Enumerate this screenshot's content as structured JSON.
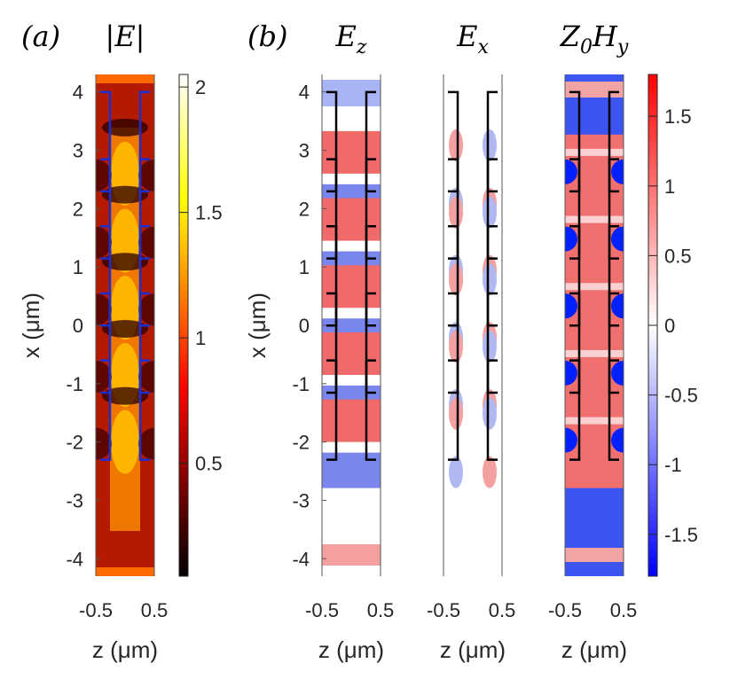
{
  "figure": {
    "label_a": "(a)",
    "label_b": "(b)"
  },
  "chart_data": [
    {
      "type": "heatmap",
      "id": "panel-a",
      "title": "|E|",
      "colormap": "hot",
      "xlabel": "z (μm)",
      "ylabel": "x (μm)",
      "xlim": [
        -0.5,
        0.5
      ],
      "ylim": [
        -4.3,
        4.3
      ],
      "xticks": [
        -0.5,
        0.5
      ],
      "xtick_labels": [
        "-0.5",
        "0.5"
      ],
      "yticks": [
        4,
        3,
        2,
        1,
        0,
        -1,
        -2,
        -3,
        -4
      ],
      "ytick_labels": [
        "4",
        "3",
        "2",
        "1",
        "0",
        "-1",
        "-2",
        "-3",
        "-4"
      ],
      "colorbar": {
        "limits": [
          0.05,
          2.05
        ],
        "ticks": [
          2,
          1.5,
          1,
          0.5
        ],
        "tick_labels": [
          "2",
          "1.5",
          "1",
          "0.5"
        ]
      },
      "outline_color": "#1a2fd0"
    },
    {
      "type": "heatmap",
      "id": "panel-ez",
      "title": "E_z",
      "colormap": "blue-white-red",
      "xlim": [
        -0.5,
        0.5
      ],
      "ylim": [
        -4.3,
        4.3
      ],
      "xticks": [
        -0.5,
        0.5
      ],
      "xtick_labels": [
        "-0.5",
        "0.5"
      ],
      "yticks": [
        4,
        3,
        2,
        1,
        0,
        -1,
        -2,
        -3,
        -4
      ],
      "ytick_labels": [
        "4",
        "3",
        "2",
        "1",
        "0",
        "-1",
        "-2",
        "-3",
        "-4"
      ],
      "xlabel": "z (μm)",
      "ylabel": "x (μm)",
      "outline_color": "#000000"
    },
    {
      "type": "heatmap",
      "id": "panel-ex",
      "title": "E_x",
      "colormap": "blue-white-red",
      "xlim": [
        -0.5,
        0.5
      ],
      "ylim": [
        -4.3,
        4.3
      ],
      "xticks": [
        -0.5,
        0.5
      ],
      "xtick_labels": [
        "-0.5",
        "0.5"
      ],
      "xlabel": "z (μm)",
      "outline_color": "#000000"
    },
    {
      "type": "heatmap",
      "id": "panel-hy",
      "title": "Z_0 H_y",
      "colormap": "blue-white-red",
      "xlim": [
        -0.5,
        0.5
      ],
      "ylim": [
        -4.3,
        4.3
      ],
      "xticks": [
        -0.5,
        0.5
      ],
      "xtick_labels": [
        "-0.5",
        "0.5"
      ],
      "xlabel": "z (μm)",
      "outline_color": "#000000",
      "colorbar": {
        "limits": [
          -1.8,
          1.8
        ],
        "ticks": [
          1.5,
          1,
          0.5,
          0,
          -0.5,
          -1,
          -1.5
        ],
        "tick_labels": [
          "1.5",
          "1",
          "0.5",
          "0",
          "-0.5",
          "-1",
          "-1.5"
        ]
      }
    }
  ]
}
